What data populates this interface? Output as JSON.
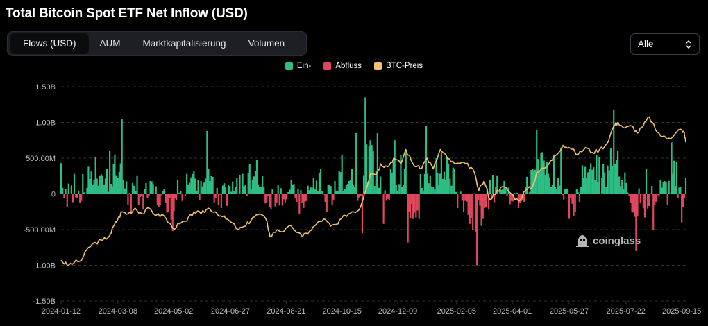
{
  "title": "Total Bitcoin Spot ETF Net Inflow (USD)",
  "tabs": [
    "Flows (USD)",
    "AUM",
    "Marktkapitalisierung",
    "Volumen"
  ],
  "active_tab": "Flows (USD)",
  "range_select": {
    "value": "Alle",
    "icon": "chevron-up-down-icon"
  },
  "legend": [
    {
      "label": "Ein-",
      "color": "#2ebd85"
    },
    {
      "label": "Abfluss",
      "color": "#e0475e"
    },
    {
      "label": "BTC-Preis",
      "color": "#f0c26b"
    }
  ],
  "watermark": {
    "text": "coinglass",
    "icon": "coinglass-logo-icon"
  },
  "colors": {
    "background": "#000000",
    "inflow": "#2ebd85",
    "outflow": "#e0475e",
    "price": "#f0c26b",
    "grid": "#333333",
    "axis_text": "#bdbdbd"
  },
  "chart_data": {
    "type": "bar",
    "title": "Total Bitcoin Spot ETF Net Inflow (USD)",
    "y_ticks": [
      "1.50B",
      "1.00B",
      "500.00M",
      "0",
      "-500.00M",
      "-1.00B",
      "-1.50B"
    ],
    "y_tick_values": [
      1.5,
      1.0,
      0.5,
      0,
      -0.5,
      -1.0,
      -1.5
    ],
    "ylim": [
      -1.5,
      1.5
    ],
    "y_unit": "Billion USD",
    "x_ticks": [
      "2024-01-12",
      "2024-03-08",
      "2024-05-02",
      "2024-06-27",
      "2024-08-21",
      "2024-10-15",
      "2024-12-09",
      "2025-02-05",
      "2025-04-01",
      "2025-05-27",
      "2025-07-22",
      "2025-09-15"
    ],
    "x_range": [
      "2024-01-12",
      "2025-09-19"
    ],
    "grid": true,
    "legend_position": "top-center",
    "flow_points": [
      [
        "2024-01-12",
        0.43
      ],
      [
        "2024-01-18",
        -0.18
      ],
      [
        "2024-01-25",
        0.28
      ],
      [
        "2024-02-01",
        -0.1
      ],
      [
        "2024-02-08",
        0.38
      ],
      [
        "2024-02-15",
        0.52
      ],
      [
        "2024-02-22",
        0.25
      ],
      [
        "2024-02-29",
        0.6
      ],
      [
        "2024-03-05",
        0.55
      ],
      [
        "2024-03-08",
        0.22
      ],
      [
        "2024-03-12",
        1.05
      ],
      [
        "2024-03-18",
        -0.15
      ],
      [
        "2024-03-21",
        -0.28
      ],
      [
        "2024-03-27",
        0.25
      ],
      [
        "2024-04-02",
        -0.22
      ],
      [
        "2024-04-09",
        0.18
      ],
      [
        "2024-04-16",
        -0.15
      ],
      [
        "2024-04-24",
        -0.12
      ],
      [
        "2024-05-01",
        -0.52
      ],
      [
        "2024-05-06",
        0.2
      ],
      [
        "2024-05-15",
        0.28
      ],
      [
        "2024-05-22",
        0.32
      ],
      [
        "2024-05-29",
        0.18
      ],
      [
        "2024-06-04",
        0.88
      ],
      [
        "2024-06-11",
        -0.12
      ],
      [
        "2024-06-18",
        -0.2
      ],
      [
        "2024-06-25",
        0.12
      ],
      [
        "2024-07-02",
        0.1
      ],
      [
        "2024-07-09",
        0.28
      ],
      [
        "2024-07-16",
        0.42
      ],
      [
        "2024-07-23",
        0.48
      ],
      [
        "2024-07-30",
        0.1
      ],
      [
        "2024-08-06",
        -0.22
      ],
      [
        "2024-08-13",
        0.12
      ],
      [
        "2024-08-20",
        -0.12
      ],
      [
        "2024-08-26",
        0.2
      ],
      [
        "2024-09-03",
        -0.28
      ],
      [
        "2024-09-10",
        -0.1
      ],
      [
        "2024-09-17",
        0.22
      ],
      [
        "2024-09-24",
        0.35
      ],
      [
        "2024-09-30",
        -0.25
      ],
      [
        "2024-10-08",
        0.18
      ],
      [
        "2024-10-15",
        0.55
      ],
      [
        "2024-10-22",
        0.18
      ],
      [
        "2024-10-29",
        0.85
      ],
      [
        "2024-11-04",
        -0.55
      ],
      [
        "2024-11-07",
        1.35
      ],
      [
        "2024-11-12",
        0.75
      ],
      [
        "2024-11-19",
        0.85
      ],
      [
        "2024-11-25",
        -0.42
      ],
      [
        "2024-12-02",
        0.35
      ],
      [
        "2024-12-06",
        0.75
      ],
      [
        "2024-12-12",
        0.55
      ],
      [
        "2024-12-17",
        0.6
      ],
      [
        "2024-12-19",
        -0.68
      ],
      [
        "2024-12-24",
        -0.35
      ],
      [
        "2024-12-30",
        -0.35
      ],
      [
        "2025-01-06",
        0.95
      ],
      [
        "2025-01-10",
        0.25
      ],
      [
        "2025-01-16",
        0.5
      ],
      [
        "2025-01-21",
        0.58
      ],
      [
        "2025-01-28",
        0.42
      ],
      [
        "2025-02-03",
        0.35
      ],
      [
        "2025-02-06",
        -0.2
      ],
      [
        "2025-02-12",
        -0.25
      ],
      [
        "2025-02-18",
        -0.42
      ],
      [
        "2025-02-21",
        -0.5
      ],
      [
        "2025-02-25",
        -1.0
      ],
      [
        "2025-03-03",
        -0.35
      ],
      [
        "2025-03-10",
        0.2
      ],
      [
        "2025-03-17",
        0.25
      ],
      [
        "2025-03-24",
        0.18
      ],
      [
        "2025-03-31",
        -0.1
      ],
      [
        "2025-04-07",
        -0.2
      ],
      [
        "2025-04-14",
        0.1
      ],
      [
        "2025-04-21",
        0.35
      ],
      [
        "2025-04-25",
        0.9
      ],
      [
        "2025-05-05",
        0.45
      ],
      [
        "2025-05-12",
        0.55
      ],
      [
        "2025-05-19",
        0.65
      ],
      [
        "2025-05-27",
        -0.35
      ],
      [
        "2025-06-02",
        -0.25
      ],
      [
        "2025-06-09",
        0.4
      ],
      [
        "2025-06-16",
        0.35
      ],
      [
        "2025-06-23",
        0.55
      ],
      [
        "2025-07-01",
        0.3
      ],
      [
        "2025-07-10",
        1.17
      ],
      [
        "2025-07-14",
        0.6
      ],
      [
        "2025-07-21",
        0.3
      ],
      [
        "2025-07-28",
        -0.25
      ],
      [
        "2025-08-01",
        -0.8
      ],
      [
        "2025-08-11",
        0.35
      ],
      [
        "2025-08-18",
        -0.5
      ],
      [
        "2025-08-25",
        0.2
      ],
      [
        "2025-09-01",
        -0.15
      ],
      [
        "2025-09-05",
        0.72
      ],
      [
        "2025-09-10",
        0.45
      ],
      [
        "2025-09-15",
        -0.4
      ],
      [
        "2025-09-19",
        0.22
      ]
    ],
    "price_axis": "secondary (unlabeled)",
    "price_series": [
      [
        "2024-01-12",
        -0.93
      ],
      [
        "2024-01-18",
        -1.0
      ],
      [
        "2024-01-25",
        -0.96
      ],
      [
        "2024-02-01",
        -0.93
      ],
      [
        "2024-02-08",
        -0.75
      ],
      [
        "2024-02-15",
        -0.68
      ],
      [
        "2024-02-22",
        -0.65
      ],
      [
        "2024-02-29",
        -0.58
      ],
      [
        "2024-03-05",
        -0.42
      ],
      [
        "2024-03-08",
        -0.35
      ],
      [
        "2024-03-12",
        -0.25
      ],
      [
        "2024-03-18",
        -0.28
      ],
      [
        "2024-03-25",
        -0.2
      ],
      [
        "2024-04-01",
        -0.28
      ],
      [
        "2024-04-08",
        -0.2
      ],
      [
        "2024-04-15",
        -0.3
      ],
      [
        "2024-04-22",
        -0.3
      ],
      [
        "2024-05-01",
        -0.48
      ],
      [
        "2024-05-08",
        -0.42
      ],
      [
        "2024-05-15",
        -0.38
      ],
      [
        "2024-05-22",
        -0.25
      ],
      [
        "2024-05-29",
        -0.28
      ],
      [
        "2024-06-05",
        -0.2
      ],
      [
        "2024-06-12",
        -0.25
      ],
      [
        "2024-06-19",
        -0.32
      ],
      [
        "2024-06-26",
        -0.38
      ],
      [
        "2024-07-05",
        -0.5
      ],
      [
        "2024-07-12",
        -0.45
      ],
      [
        "2024-07-19",
        -0.33
      ],
      [
        "2024-07-26",
        -0.28
      ],
      [
        "2024-08-02",
        -0.38
      ],
      [
        "2024-08-05",
        -0.6
      ],
      [
        "2024-08-12",
        -0.5
      ],
      [
        "2024-08-19",
        -0.52
      ],
      [
        "2024-08-26",
        -0.45
      ],
      [
        "2024-09-06",
        -0.6
      ],
      [
        "2024-09-13",
        -0.52
      ],
      [
        "2024-09-20",
        -0.42
      ],
      [
        "2024-09-27",
        -0.35
      ],
      [
        "2024-10-04",
        -0.45
      ],
      [
        "2024-10-11",
        -0.42
      ],
      [
        "2024-10-18",
        -0.3
      ],
      [
        "2024-10-25",
        -0.25
      ],
      [
        "2024-11-01",
        -0.22
      ],
      [
        "2024-11-06",
        0.0
      ],
      [
        "2024-11-12",
        0.28
      ],
      [
        "2024-11-19",
        0.3
      ],
      [
        "2024-11-22",
        0.42
      ],
      [
        "2024-11-29",
        0.38
      ],
      [
        "2024-12-05",
        0.5
      ],
      [
        "2024-12-12",
        0.42
      ],
      [
        "2024-12-17",
        0.62
      ],
      [
        "2024-12-24",
        0.42
      ],
      [
        "2024-12-31",
        0.35
      ],
      [
        "2025-01-07",
        0.5
      ],
      [
        "2025-01-13",
        0.35
      ],
      [
        "2025-01-20",
        0.62
      ],
      [
        "2025-01-27",
        0.5
      ],
      [
        "2025-02-03",
        0.42
      ],
      [
        "2025-02-14",
        0.42
      ],
      [
        "2025-02-21",
        0.35
      ],
      [
        "2025-02-27",
        0.05
      ],
      [
        "2025-03-04",
        0.18
      ],
      [
        "2025-03-10",
        -0.08
      ],
      [
        "2025-03-17",
        0.05
      ],
      [
        "2025-03-24",
        0.1
      ],
      [
        "2025-03-31",
        0.0
      ],
      [
        "2025-04-07",
        -0.1
      ],
      [
        "2025-04-14",
        0.05
      ],
      [
        "2025-04-21",
        0.1
      ],
      [
        "2025-04-25",
        0.3
      ],
      [
        "2025-05-05",
        0.38
      ],
      [
        "2025-05-12",
        0.52
      ],
      [
        "2025-05-21",
        0.68
      ],
      [
        "2025-05-27",
        0.65
      ],
      [
        "2025-06-05",
        0.55
      ],
      [
        "2025-06-12",
        0.65
      ],
      [
        "2025-06-19",
        0.58
      ],
      [
        "2025-06-26",
        0.62
      ],
      [
        "2025-07-03",
        0.7
      ],
      [
        "2025-07-10",
        0.95
      ],
      [
        "2025-07-14",
        1.0
      ],
      [
        "2025-07-21",
        0.92
      ],
      [
        "2025-07-28",
        0.95
      ],
      [
        "2025-08-02",
        0.85
      ],
      [
        "2025-08-08",
        0.95
      ],
      [
        "2025-08-14",
        1.08
      ],
      [
        "2025-08-20",
        0.9
      ],
      [
        "2025-08-27",
        0.8
      ],
      [
        "2025-09-02",
        0.78
      ],
      [
        "2025-09-09",
        0.85
      ],
      [
        "2025-09-13",
        0.9
      ],
      [
        "2025-09-17",
        0.88
      ],
      [
        "2025-09-19",
        0.72
      ]
    ]
  }
}
